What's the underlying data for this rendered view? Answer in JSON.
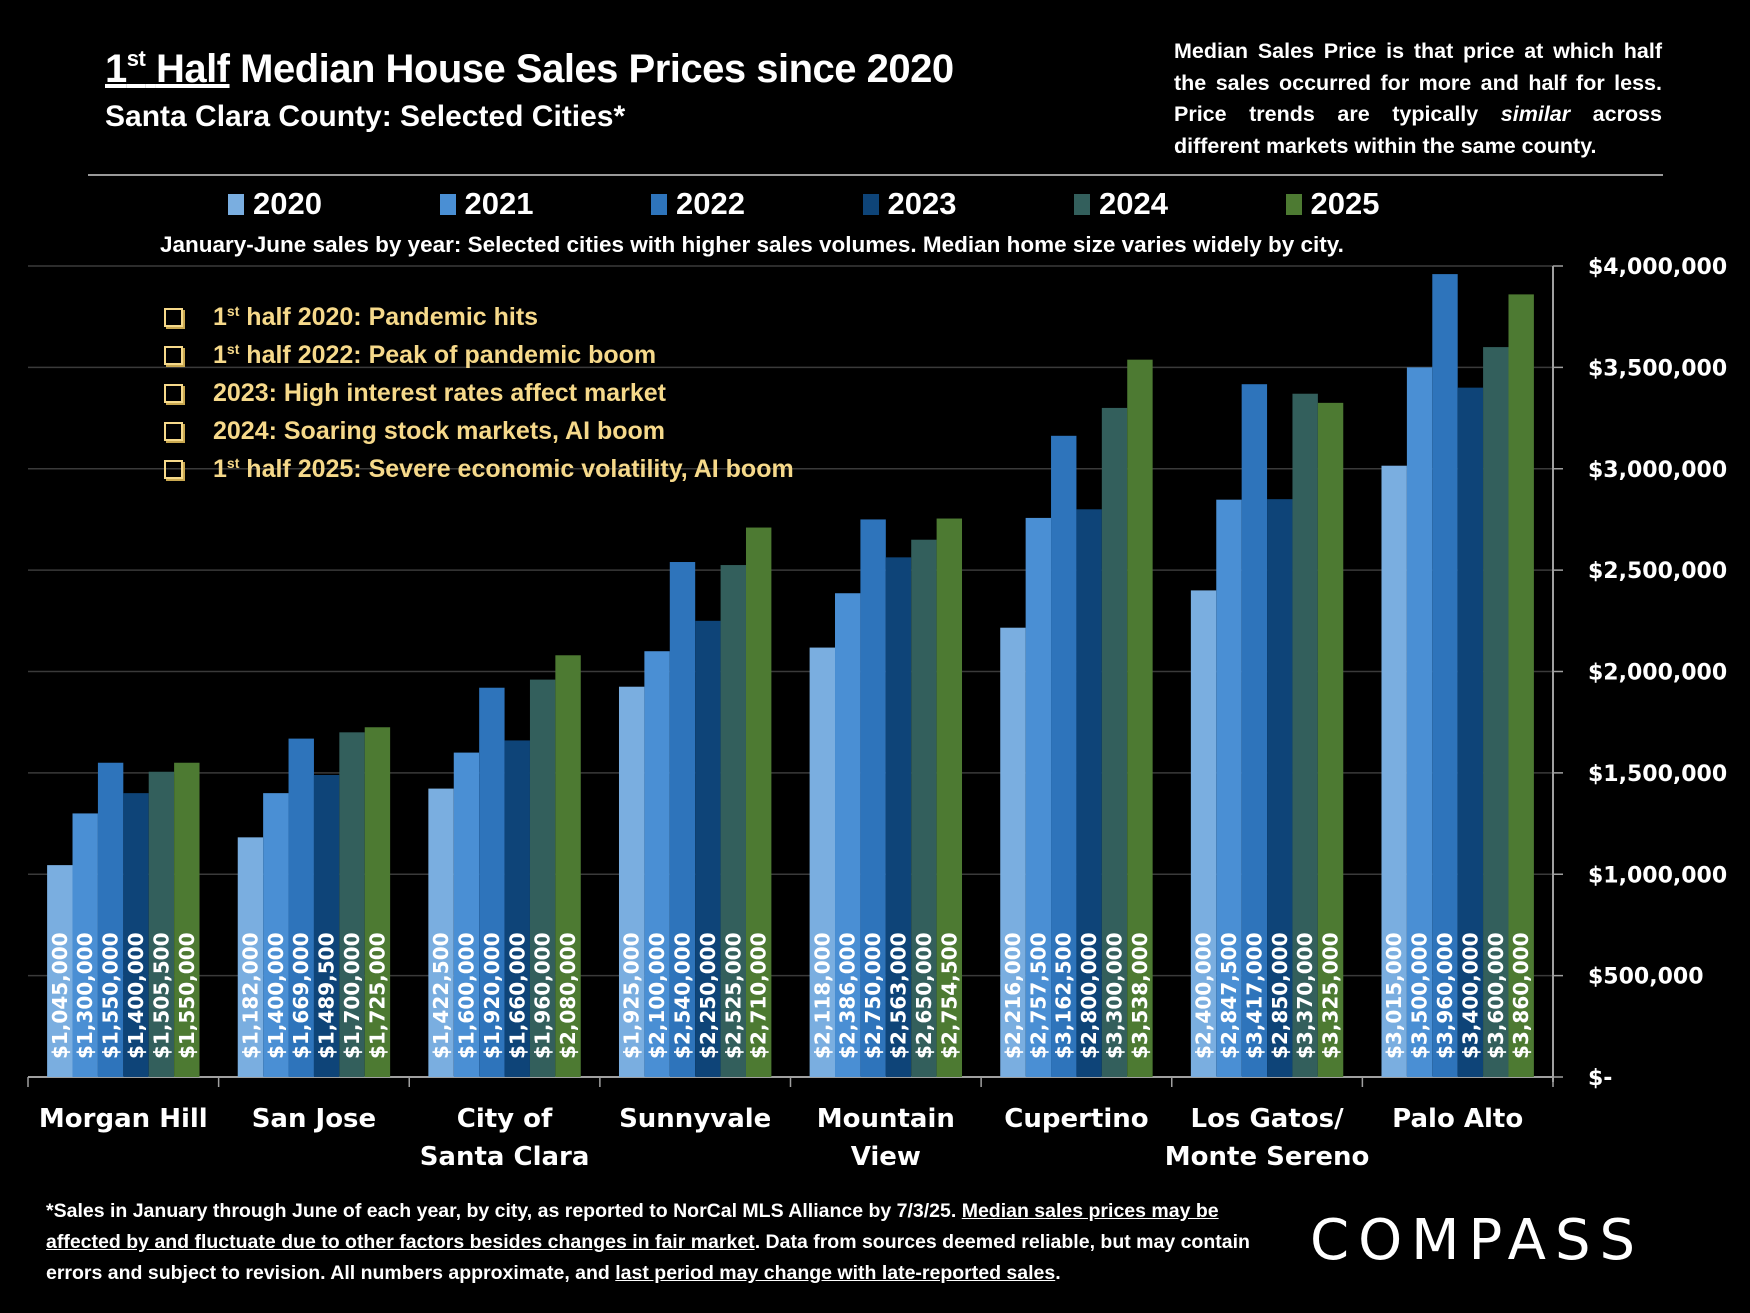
{
  "header": {
    "title_superscript_prefix": "1",
    "title_superscript": "st",
    "title_underlined_word": "Half",
    "title_rest": " Median House Sales Prices since 2020",
    "subtitle": "Santa Clara County: Selected Cities*",
    "definition_note_part1": "Median Sales Price is that price at which half the sales occurred for more and half for less. Price trends are typically ",
    "definition_note_italic": "similar",
    "definition_note_part2": " across different markets within the same county."
  },
  "caption": "January-June sales by year: Selected cities with higher sales volumes. Median home size varies widely by city.",
  "events": [
    {
      "prefix": "1",
      "sup": "st",
      "text": " half 2020: Pandemic hits"
    },
    {
      "prefix": "1",
      "sup": "st",
      "text": " half 2022:  Peak of pandemic boom"
    },
    {
      "prefix": "",
      "sup": "",
      "text": "2023:  High interest rates affect market"
    },
    {
      "prefix": "",
      "sup": "",
      "text": "2024:  Soaring stock markets, AI boom"
    },
    {
      "prefix": "1",
      "sup": "st",
      "text": " half 2025:  Severe economic volatility, AI boom"
    }
  ],
  "footnote": {
    "part1": "*Sales in January through June of each year, by city, as reported to NorCal MLS Alliance by 7/3/25. ",
    "underlined1": "Median sales prices may be affected by and fluctuate due to other factors besides changes in fair market",
    "part2": ". Data from sources deemed reliable, but may contain errors and subject to revision. All numbers approximate, and ",
    "underlined2": "last period may change with late-reported sales",
    "part3": "."
  },
  "logo": "COMPASS",
  "chart_data": {
    "type": "bar",
    "title": "1st Half Median House Sales Prices since 2020",
    "subtitle": "Santa Clara County: Selected Cities*",
    "xlabel": "",
    "ylabel": "",
    "ylim": [
      0,
      4000000
    ],
    "y_ticks": [
      0,
      500000,
      1000000,
      1500000,
      2000000,
      2500000,
      3000000,
      3500000,
      4000000
    ],
    "y_tick_labels": [
      "$-",
      "$500,000",
      "$1,000,000",
      "$1,500,000",
      "$2,000,000",
      "$2,500,000",
      "$3,000,000",
      "$3,500,000",
      "$4,000,000"
    ],
    "y_axis_side": "right",
    "grid": true,
    "legend_placement": "top",
    "categories": [
      [
        "Morgan Hill"
      ],
      [
        "San Jose"
      ],
      [
        "City of",
        "Santa Clara"
      ],
      [
        "Sunnyvale"
      ],
      [
        "Mountain",
        "View"
      ],
      [
        "Cupertino"
      ],
      [
        "Los Gatos/",
        "Monte Sereno"
      ],
      [
        "Palo Alto"
      ]
    ],
    "series": [
      {
        "name": "2020",
        "color": "#7aaee0",
        "values": [
          1045000,
          1182000,
          1422500,
          1925000,
          2118000,
          2216000,
          2400000,
          3015000
        ],
        "labels": [
          "$1,045,000",
          "$1,182,000",
          "$1,422,500",
          "$1,925,000",
          "$2,118,000",
          "$2,216,000",
          "$2,400,000",
          "$3,015,000"
        ]
      },
      {
        "name": "2021",
        "color": "#4a8fd4",
        "values": [
          1300000,
          1400000,
          1600000,
          2100000,
          2386000,
          2757500,
          2847500,
          3500000
        ],
        "labels": [
          "$1,300,000",
          "$1,400,000",
          "$1,600,000",
          "$2,100,000",
          "$2,386,000",
          "$2,757,500",
          "$2,847,500",
          "$3,500,000"
        ]
      },
      {
        "name": "2022",
        "color": "#2e74bb",
        "values": [
          1550000,
          1669000,
          1920000,
          2540000,
          2750000,
          3162500,
          3417000,
          3960000
        ],
        "labels": [
          "$1,550,000",
          "$1,669,000",
          "$1,920,000",
          "$2,540,000",
          "$2,750,000",
          "$3,162,500",
          "$3,417,000",
          "$3,960,000"
        ]
      },
      {
        "name": "2023",
        "color": "#0e4478",
        "values": [
          1400000,
          1489500,
          1660000,
          2250000,
          2563000,
          2800000,
          2850000,
          3400000
        ],
        "labels": [
          "$1,400,000",
          "$1,489,500",
          "$1,660,000",
          "$2,250,000",
          "$2,563,000",
          "$2,800,000",
          "$2,850,000",
          "$3,400,000"
        ]
      },
      {
        "name": "2024",
        "color": "#335f5c",
        "values": [
          1505500,
          1700000,
          1960000,
          2525000,
          2650000,
          3300000,
          3370000,
          3600000
        ],
        "labels": [
          "$1,505,500",
          "$1,700,000",
          "$1,960,000",
          "$2,525,000",
          "$2,650,000",
          "$3,300,000",
          "$3,370,000",
          "$3,600,000"
        ]
      },
      {
        "name": "2025",
        "color": "#4d7a32",
        "values": [
          1550000,
          1725000,
          2080000,
          2710000,
          2754500,
          3538000,
          3325000,
          3860000
        ],
        "labels": [
          "$1,550,000",
          "$1,725,000",
          "$2,080,000",
          "$2,710,000",
          "$2,754,500",
          "$3,538,000",
          "$3,325,000",
          "$3,860,000"
        ]
      }
    ]
  }
}
